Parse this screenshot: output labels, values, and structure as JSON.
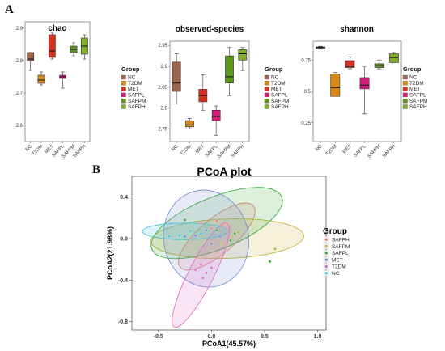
{
  "figure": {
    "panel_a_label": "A",
    "panel_b_label": "B"
  },
  "chart_data": [
    {
      "type": "box",
      "title": "chao",
      "categories": [
        "NC",
        "T2DM",
        "MET",
        "SAFPL",
        "SAFPM",
        "SAFPH"
      ],
      "colors": [
        "#a0644a",
        "#d98a14",
        "#d4311f",
        "#d21d7c",
        "#5c9621",
        "#82ad2e"
      ],
      "ylim": [
        2.55,
        2.92
      ],
      "yticks": [
        2.6,
        2.7,
        2.8,
        2.9
      ],
      "boxes": [
        {
          "min": 2.77,
          "q1": 2.8,
          "median": 2.805,
          "q3": 2.825,
          "max": 2.825
        },
        {
          "min": 2.725,
          "q1": 2.73,
          "median": 2.74,
          "q3": 2.755,
          "max": 2.765
        },
        {
          "min": 2.805,
          "q1": 2.81,
          "median": 2.83,
          "q3": 2.88,
          "max": 2.885
        },
        {
          "min": 2.715,
          "q1": 2.745,
          "median": 2.75,
          "q3": 2.755,
          "max": 2.765
        },
        {
          "min": 2.815,
          "q1": 2.825,
          "median": 2.835,
          "q3": 2.845,
          "max": 2.855
        },
        {
          "min": 2.805,
          "q1": 2.82,
          "median": 2.845,
          "q3": 2.87,
          "max": 2.88
        }
      ],
      "legend": {
        "title": "Group",
        "labels": [
          "NC",
          "T2DM",
          "MET",
          "SAFPL",
          "SAFPM",
          "SAFPH"
        ]
      }
    },
    {
      "type": "box",
      "title": "observed-species",
      "categories": [
        "NC",
        "T2DM",
        "MET",
        "SAFPL",
        "SAFPM",
        "SAFPH"
      ],
      "colors": [
        "#a0644a",
        "#d98a14",
        "#d4311f",
        "#d21d7c",
        "#5c9621",
        "#82ad2e"
      ],
      "ylim": [
        2.72,
        2.96
      ],
      "yticks": [
        2.75,
        2.8,
        2.85,
        2.9,
        2.95
      ],
      "boxes": [
        {
          "min": 2.81,
          "q1": 2.84,
          "median": 2.86,
          "q3": 2.91,
          "max": 2.93
        },
        {
          "min": 2.75,
          "q1": 2.755,
          "median": 2.76,
          "q3": 2.77,
          "max": 2.775
        },
        {
          "min": 2.795,
          "q1": 2.815,
          "median": 2.83,
          "q3": 2.845,
          "max": 2.88
        },
        {
          "min": 2.735,
          "q1": 2.77,
          "median": 2.78,
          "q3": 2.795,
          "max": 2.805
        },
        {
          "min": 2.83,
          "q1": 2.86,
          "median": 2.875,
          "q3": 2.925,
          "max": 2.945
        },
        {
          "min": 2.89,
          "q1": 2.915,
          "median": 2.93,
          "q3": 2.94,
          "max": 2.945
        }
      ],
      "legend": {
        "title": "Group",
        "labels": [
          "NC",
          "T2DM",
          "MET",
          "SAFPL",
          "SAFPM",
          "SAFPH"
        ]
      }
    },
    {
      "type": "box",
      "title": "shannon",
      "categories": [
        "NC",
        "T2DM",
        "MET",
        "SAFPL",
        "SAFPM",
        "SAFPH"
      ],
      "colors": [
        "#a0644a",
        "#d98a14",
        "#d4311f",
        "#d21d7c",
        "#5c9621",
        "#82ad2e"
      ],
      "ylim": [
        0.1,
        0.9
      ],
      "yticks": [
        0.25,
        0.5,
        0.75
      ],
      "boxes": [
        {
          "min": 0.84,
          "q1": 0.845,
          "median": 0.85,
          "q3": 0.855,
          "max": 0.86
        },
        {
          "min": 0.46,
          "q1": 0.46,
          "median": 0.53,
          "q3": 0.64,
          "max": 0.65
        },
        {
          "min": 0.68,
          "q1": 0.69,
          "median": 0.7,
          "q3": 0.745,
          "max": 0.775
        },
        {
          "min": 0.32,
          "q1": 0.52,
          "median": 0.55,
          "q3": 0.61,
          "max": 0.7
        },
        {
          "min": 0.68,
          "q1": 0.69,
          "median": 0.705,
          "q3": 0.72,
          "max": 0.75
        },
        {
          "min": 0.73,
          "q1": 0.73,
          "median": 0.77,
          "q3": 0.8,
          "max": 0.81
        }
      ],
      "legend": {
        "title": "Group",
        "labels": [
          "NC",
          "T2DM",
          "MET",
          "SAFPL",
          "SAFPM",
          "SAFPH"
        ]
      }
    },
    {
      "type": "scatter",
      "title": "PCoA plot",
      "xlabel": "PCoA1(45.57%)",
      "ylabel": "PCoA2(21.98%)",
      "xlim": [
        -0.75,
        1.08
      ],
      "ylim": [
        -0.88,
        0.6
      ],
      "xticks": [
        -0.5,
        0.0,
        0.5,
        1.0
      ],
      "yticks": [
        -0.8,
        -0.4,
        0.0,
        0.4
      ],
      "xtick_labels": [
        "-0.5",
        "0.0",
        "0.5",
        "1.0"
      ],
      "ytick_labels": [
        "-0.8",
        "-0.4",
        "0.0",
        "0.4"
      ],
      "legend": {
        "title": "Group",
        "position": "right"
      },
      "series": [
        {
          "name": "SAFPH",
          "color": "#e8827a",
          "points": [
            [
              -0.1,
              0.15
            ],
            [
              0.05,
              0.17
            ],
            [
              0.15,
              0.14
            ],
            [
              -0.2,
              0.0
            ],
            [
              0.1,
              0.12
            ],
            [
              0.0,
              0.1
            ]
          ],
          "ellipse": {
            "cx": 0.05,
            "cy": 0.02,
            "rx": 0.45,
            "ry": 0.17,
            "angle": -40
          }
        },
        {
          "name": "SAFPM",
          "color": "#c7b23a",
          "points": [
            [
              0.2,
              0.02
            ],
            [
              0.6,
              -0.1
            ],
            [
              0.25,
              0.06
            ],
            [
              0.1,
              -0.05
            ]
          ],
          "ellipse": {
            "cx": 0.15,
            "cy": -0.0,
            "rx": 0.72,
            "ry": 0.19,
            "angle": -2
          }
        },
        {
          "name": "SAFPL",
          "color": "#3fae3f",
          "points": [
            [
              0.55,
              -0.22
            ],
            [
              0.22,
              0.05
            ],
            [
              -0.25,
              0.18
            ],
            [
              0.05,
              0.08
            ],
            [
              0.18,
              -0.02
            ]
          ],
          "ellipse": {
            "cx": 0.05,
            "cy": 0.15,
            "rx": 0.66,
            "ry": 0.25,
            "angle": -22
          }
        },
        {
          "name": "MET",
          "color": "#7b8fd6",
          "points": [
            [
              -0.15,
              0.03
            ],
            [
              0.0,
              -0.05
            ],
            [
              -0.05,
              0.08
            ],
            [
              0.08,
              0.02
            ],
            [
              -0.25,
              0.02
            ]
          ],
          "ellipse": {
            "cx": -0.05,
            "cy": 0.0,
            "rx": 0.4,
            "ry": 0.47,
            "angle": -12
          }
        },
        {
          "name": "T2DM",
          "color": "#e26fc7",
          "points": [
            [
              -0.1,
              -0.25
            ],
            [
              -0.05,
              -0.33
            ],
            [
              -0.15,
              -0.3
            ],
            [
              -0.08,
              -0.38
            ],
            [
              0.0,
              -0.28
            ]
          ],
          "ellipse": {
            "cx": -0.1,
            "cy": -0.35,
            "rx": 0.55,
            "ry": 0.12,
            "angle": -63
          }
        },
        {
          "name": "NC",
          "color": "#4bc4d6",
          "points": [
            [
              -0.3,
              0.03
            ],
            [
              -0.2,
              0.07
            ],
            [
              -0.1,
              0.05
            ],
            [
              -0.4,
              0.02
            ],
            [
              -0.2,
              0.15
            ]
          ],
          "ellipse": {
            "cx": -0.25,
            "cy": 0.07,
            "rx": 0.4,
            "ry": 0.08,
            "angle": 0
          }
        }
      ]
    }
  ]
}
